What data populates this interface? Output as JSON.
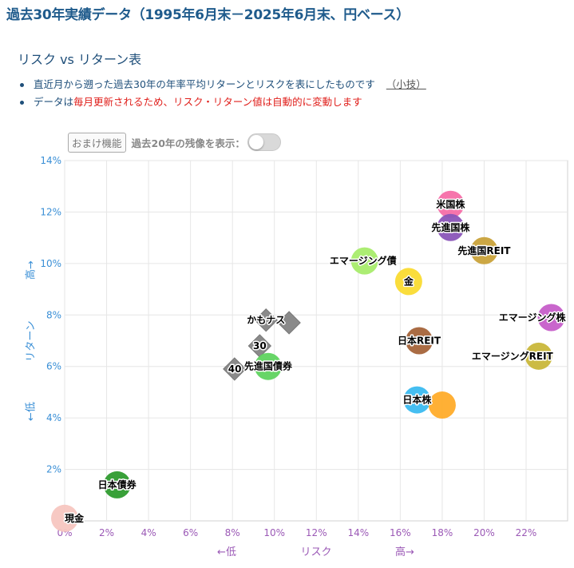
{
  "heading": "過去30年実績データ（1995年6月末－2025年6月末、円ベース）",
  "subtitle": "リスク vs リターン表",
  "bullets": {
    "b1_text": "直近月から遡った過去30年の年率平均リターンとリスクを表にしたものです",
    "b1_link": "（小技）",
    "b2_pre": "データは",
    "b2_red": "毎月更新されるため、リスク・リターン値は自動的に変動します"
  },
  "controls": {
    "bonus_label": "おまけ機能",
    "toggle_label": "過去20年の残像を表示：",
    "toggle_on": false
  },
  "colors": {
    "axis_text": "#9b59b6",
    "y_axis_text": "#3a8fd6",
    "grid": "#e6e6e6"
  },
  "chart_data": {
    "type": "scatter",
    "xlabel": "リスク",
    "x_low_label": "←低",
    "x_high_label": "高→",
    "ylabel": "リターン",
    "y_high_label": "高→",
    "y_low_label": "←低",
    "xlim": [
      0,
      24
    ],
    "ylim": [
      0,
      14
    ],
    "x_unit": "%",
    "y_unit": "%",
    "x_ticks": [
      0,
      2,
      4,
      6,
      8,
      10,
      12,
      14,
      16,
      18,
      20,
      22
    ],
    "y_ticks": [
      2,
      4,
      6,
      8,
      10,
      12,
      14
    ],
    "grid": true,
    "points": [
      {
        "label": "現金",
        "x": 0.0,
        "y": 0.1,
        "color": "#f7c6c0"
      },
      {
        "label": "日本債券",
        "x": 2.5,
        "y": 1.4,
        "color": "#2e9b2e"
      },
      {
        "label": "先進国債券",
        "x": 9.7,
        "y": 6.0,
        "color": "#5fd35f"
      },
      {
        "label": "エマージング債",
        "x": 14.3,
        "y": 10.1,
        "color": "#a8ec6c"
      },
      {
        "label": "金",
        "x": 16.4,
        "y": 9.3,
        "color": "#fadb31"
      },
      {
        "label": "日本REIT",
        "x": 16.9,
        "y": 7.0,
        "color": "#a5643a"
      },
      {
        "label": "日本株",
        "x": 16.8,
        "y": 4.7,
        "color": "#3bbbf0"
      },
      {
        "label": "",
        "x": 18.0,
        "y": 4.5,
        "color": "#ffac2a"
      },
      {
        "label": "米国株",
        "x": 18.4,
        "y": 12.3,
        "color": "#f56ea8"
      },
      {
        "label": "先進国株",
        "x": 18.4,
        "y": 11.4,
        "color": "#8a55b8"
      },
      {
        "label": "先進国REIT",
        "x": 20.0,
        "y": 10.5,
        "color": "#c9a23a"
      },
      {
        "label": "エマージング株",
        "x": 23.2,
        "y": 7.9,
        "color": "#c65ec9"
      },
      {
        "label": "エマージングREIT",
        "x": 22.6,
        "y": 6.4,
        "color": "#c9b73a"
      }
    ],
    "portfolios": [
      {
        "label": "かもナス",
        "x": 9.6,
        "y": 7.8
      },
      {
        "label": "",
        "x": 10.7,
        "y": 7.7
      },
      {
        "label": "30",
        "x": 9.3,
        "y": 6.8
      },
      {
        "label": "40",
        "x": 8.1,
        "y": 5.9
      }
    ]
  }
}
